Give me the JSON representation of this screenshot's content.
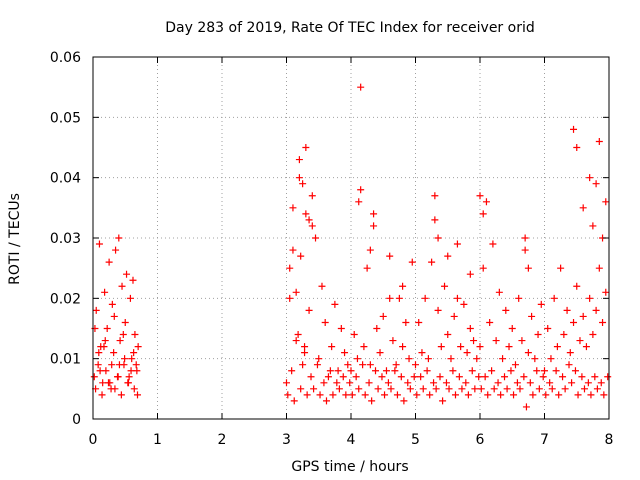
{
  "chart_data": {
    "type": "scatter",
    "title": "Day 283 of 2019, Rate Of TEC Index for receiver orid",
    "xlabel": "GPS time / hours",
    "ylabel": "ROTI / TECUs",
    "xlim": [
      0,
      8
    ],
    "ylim": [
      0,
      0.06
    ],
    "x_ticks": [
      0,
      1,
      2,
      3,
      4,
      5,
      6,
      7,
      8
    ],
    "y_ticks": [
      0,
      0.01,
      0.02,
      0.03,
      0.04,
      0.05,
      0.06
    ],
    "x_tick_labels": [
      "0",
      "1",
      "2",
      "3",
      "4",
      "5",
      "6",
      "7",
      "8"
    ],
    "y_tick_labels": [
      "0",
      "0.01",
      "0.02",
      "0.03",
      "0.04",
      "0.05",
      "0.06"
    ],
    "grid": true,
    "marker": "+",
    "color": "#ff0000",
    "series": [
      {
        "name": "ROTI",
        "x": [
          0.02,
          0.05,
          0.08,
          0.1,
          0.12,
          0.15,
          0.18,
          0.2,
          0.22,
          0.25,
          0.28,
          0.3,
          0.32,
          0.35,
          0.38,
          0.4,
          0.42,
          0.45,
          0.48,
          0.5,
          0.52,
          0.55,
          0.58,
          0.6,
          0.62,
          0.65,
          0.68,
          0.7,
          0.04,
          0.09,
          0.14,
          0.19,
          0.24,
          0.29,
          0.34,
          0.39,
          0.44,
          0.49,
          0.54,
          0.59,
          0.64,
          0.69,
          0.03,
          0.11,
          0.17,
          0.26,
          0.33,
          0.41,
          0.47,
          0.56,
          0.63,
          0.67,
          3.0,
          3.05,
          3.1,
          3.15,
          3.2,
          3.25,
          3.3,
          3.35,
          3.4,
          3.45,
          3.5,
          3.55,
          3.6,
          3.65,
          3.7,
          3.75,
          3.8,
          3.85,
          3.9,
          3.95,
          3.02,
          3.08,
          3.12,
          3.18,
          3.22,
          3.28,
          3.32,
          3.38,
          3.42,
          3.48,
          3.52,
          3.58,
          3.62,
          3.68,
          3.72,
          3.78,
          3.82,
          3.88,
          3.92,
          3.98,
          3.1,
          3.2,
          3.25,
          3.3,
          3.35,
          3.4,
          3.15,
          3.22,
          3.28,
          3.05,
          4.0,
          4.05,
          4.1,
          4.15,
          4.2,
          4.25,
          4.3,
          4.35,
          4.4,
          4.45,
          4.5,
          4.55,
          4.6,
          4.65,
          4.7,
          4.75,
          4.8,
          4.85,
          4.9,
          4.95,
          4.02,
          4.08,
          4.12,
          4.18,
          4.22,
          4.28,
          4.32,
          4.38,
          4.42,
          4.48,
          4.52,
          4.58,
          4.62,
          4.68,
          4.72,
          4.78,
          4.82,
          4.88,
          4.92,
          4.98,
          4.12,
          4.15,
          4.3,
          4.35,
          4.6,
          4.8,
          5.0,
          5.05,
          5.1,
          5.15,
          5.2,
          5.25,
          5.3,
          5.35,
          5.4,
          5.45,
          5.5,
          5.55,
          5.6,
          5.65,
          5.7,
          5.75,
          5.8,
          5.85,
          5.9,
          5.95,
          5.02,
          5.08,
          5.12,
          5.18,
          5.22,
          5.28,
          5.32,
          5.38,
          5.42,
          5.48,
          5.52,
          5.58,
          5.62,
          5.68,
          5.72,
          5.78,
          5.82,
          5.88,
          5.92,
          5.98,
          5.3,
          5.35,
          5.5,
          5.65,
          5.85,
          6.0,
          6.05,
          6.1,
          6.15,
          6.2,
          6.25,
          6.3,
          6.35,
          6.4,
          6.45,
          6.5,
          6.55,
          6.6,
          6.65,
          6.7,
          6.75,
          6.8,
          6.85,
          6.9,
          6.95,
          6.02,
          6.08,
          6.12,
          6.18,
          6.22,
          6.28,
          6.32,
          6.38,
          6.42,
          6.48,
          6.52,
          6.58,
          6.62,
          6.68,
          6.72,
          6.78,
          6.82,
          6.88,
          6.92,
          6.98,
          6.0,
          6.05,
          6.7,
          6.75,
          7.0,
          7.05,
          7.1,
          7.15,
          7.2,
          7.25,
          7.3,
          7.35,
          7.4,
          7.45,
          7.5,
          7.55,
          7.6,
          7.65,
          7.7,
          7.75,
          7.8,
          7.85,
          7.9,
          7.95,
          7.02,
          7.08,
          7.12,
          7.18,
          7.22,
          7.28,
          7.32,
          7.38,
          7.42,
          7.48,
          7.52,
          7.58,
          7.62,
          7.68,
          7.72,
          7.78,
          7.82,
          7.88,
          7.92,
          7.98,
          7.45,
          7.5,
          7.6,
          7.7,
          7.75,
          7.8,
          7.85,
          7.9,
          7.95
        ],
        "y": [
          0.007,
          0.018,
          0.009,
          0.029,
          0.012,
          0.006,
          0.021,
          0.008,
          0.015,
          0.026,
          0.005,
          0.019,
          0.011,
          0.028,
          0.007,
          0.03,
          0.013,
          0.022,
          0.009,
          0.016,
          0.024,
          0.006,
          0.02,
          0.01,
          0.023,
          0.014,
          0.008,
          0.012,
          0.005,
          0.011,
          0.004,
          0.013,
          0.006,
          0.009,
          0.005,
          0.007,
          0.004,
          0.01,
          0.006,
          0.008,
          0.005,
          0.004,
          0.015,
          0.008,
          0.012,
          0.006,
          0.017,
          0.009,
          0.014,
          0.007,
          0.011,
          0.009,
          0.006,
          0.025,
          0.035,
          0.013,
          0.04,
          0.009,
          0.045,
          0.018,
          0.037,
          0.03,
          0.01,
          0.022,
          0.016,
          0.007,
          0.012,
          0.019,
          0.008,
          0.015,
          0.011,
          0.009,
          0.004,
          0.008,
          0.003,
          0.014,
          0.005,
          0.011,
          0.004,
          0.007,
          0.005,
          0.009,
          0.004,
          0.006,
          0.003,
          0.008,
          0.004,
          0.006,
          0.005,
          0.007,
          0.004,
          0.006,
          0.028,
          0.043,
          0.039,
          0.034,
          0.033,
          0.032,
          0.021,
          0.027,
          0.012,
          0.02,
          0.008,
          0.014,
          0.01,
          0.038,
          0.012,
          0.025,
          0.009,
          0.032,
          0.015,
          0.011,
          0.017,
          0.008,
          0.027,
          0.013,
          0.009,
          0.02,
          0.012,
          0.016,
          0.01,
          0.026,
          0.004,
          0.007,
          0.005,
          0.009,
          0.004,
          0.006,
          0.003,
          0.008,
          0.005,
          0.007,
          0.004,
          0.006,
          0.005,
          0.008,
          0.004,
          0.007,
          0.003,
          0.006,
          0.005,
          0.007,
          0.036,
          0.055,
          0.028,
          0.034,
          0.02,
          0.022,
          0.009,
          0.016,
          0.011,
          0.02,
          0.01,
          0.026,
          0.033,
          0.018,
          0.012,
          0.022,
          0.014,
          0.01,
          0.017,
          0.029,
          0.012,
          0.019,
          0.011,
          0.024,
          0.013,
          0.01,
          0.004,
          0.007,
          0.005,
          0.008,
          0.004,
          0.006,
          0.005,
          0.007,
          0.003,
          0.006,
          0.005,
          0.008,
          0.004,
          0.007,
          0.005,
          0.006,
          0.004,
          0.008,
          0.005,
          0.007,
          0.037,
          0.03,
          0.027,
          0.02,
          0.015,
          0.012,
          0.025,
          0.036,
          0.016,
          0.029,
          0.013,
          0.021,
          0.01,
          0.018,
          0.012,
          0.015,
          0.009,
          0.02,
          0.013,
          0.028,
          0.011,
          0.017,
          0.01,
          0.014,
          0.019,
          0.005,
          0.007,
          0.004,
          0.008,
          0.005,
          0.006,
          0.004,
          0.007,
          0.005,
          0.008,
          0.004,
          0.006,
          0.005,
          0.007,
          0.002,
          0.006,
          0.004,
          0.008,
          0.005,
          0.007,
          0.037,
          0.034,
          0.03,
          0.025,
          0.008,
          0.015,
          0.01,
          0.02,
          0.012,
          0.025,
          0.014,
          0.018,
          0.011,
          0.016,
          0.022,
          0.013,
          0.017,
          0.012,
          0.02,
          0.014,
          0.018,
          0.025,
          0.016,
          0.021,
          0.004,
          0.006,
          0.005,
          0.008,
          0.004,
          0.007,
          0.005,
          0.009,
          0.006,
          0.008,
          0.004,
          0.007,
          0.005,
          0.006,
          0.004,
          0.007,
          0.005,
          0.006,
          0.004,
          0.007,
          0.048,
          0.045,
          0.035,
          0.04,
          0.032,
          0.039,
          0.046,
          0.03,
          0.036
        ]
      }
    ]
  }
}
